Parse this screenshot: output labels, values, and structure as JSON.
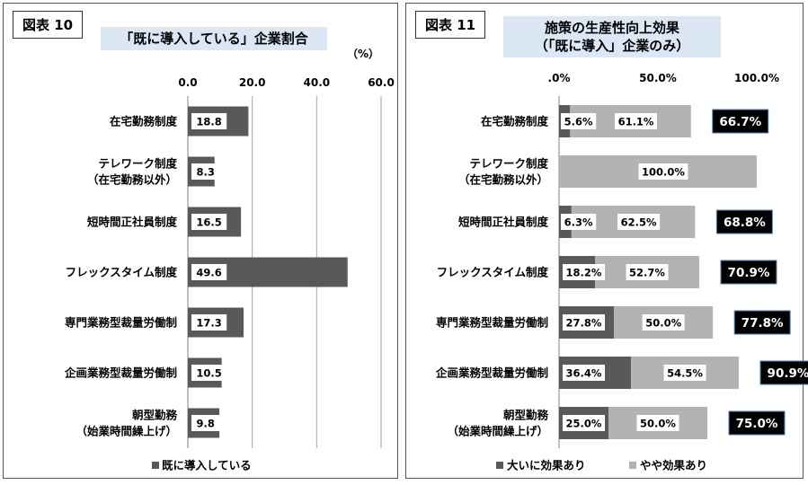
{
  "left": {
    "fig_label": "図表 10",
    "title": "「既に導入している」企業割合",
    "chart_data": {
      "type": "bar",
      "orientation": "horizontal",
      "unit_label": "（%）",
      "xlim": [
        0,
        60
      ],
      "ticks": [
        "0.0",
        "20.0",
        "40.0",
        "60.0"
      ],
      "tick_values": [
        0,
        20,
        40,
        60
      ],
      "grid": true,
      "categories": [
        [
          "在宅勤務制度"
        ],
        [
          "テレワーク制度",
          "（在宅勤務以外）"
        ],
        [
          "短時間正社員制度"
        ],
        [
          "フレックスタイム制度"
        ],
        [
          "専門業務型裁量労働制"
        ],
        [
          "企画業務型裁量労働制"
        ],
        [
          "朝型勤務",
          "（始業時間繰上げ）"
        ]
      ],
      "series": [
        {
          "name": "既に導入している",
          "values": [
            18.8,
            8.3,
            16.5,
            49.6,
            17.3,
            10.5,
            9.8
          ],
          "labels": [
            "18.8",
            "8.3",
            "16.5",
            "49.6",
            "17.3",
            "10.5",
            "9.8"
          ],
          "color": "#595959"
        }
      ],
      "legend_position": "bottom"
    }
  },
  "right": {
    "fig_label": "図表 11",
    "title_lines": [
      "施策の生産性向上効果",
      "（「既に導入」企業のみ）"
    ],
    "chart_data": {
      "type": "bar",
      "orientation": "horizontal",
      "stacked": true,
      "xlim": [
        0,
        100
      ],
      "ticks": [
        ".0%",
        "50.0%",
        "100.0%"
      ],
      "tick_values": [
        0,
        50,
        100
      ],
      "grid": false,
      "categories": [
        [
          "在宅勤務制度"
        ],
        [
          "テレワーク制度",
          "（在宅勤務以外）"
        ],
        [
          "短時間正社員制度"
        ],
        [
          "フレックスタイム制度"
        ],
        [
          "専門業務型裁量労働制"
        ],
        [
          "企画業務型裁量労働制"
        ],
        [
          "朝型勤務",
          "（始業時間繰上げ）"
        ]
      ],
      "series": [
        {
          "name": "大いに効果あり",
          "values": [
            5.6,
            0,
            6.3,
            18.2,
            27.8,
            36.4,
            25.0
          ],
          "labels": [
            "5.6%",
            "",
            "6.3%",
            "18.2%",
            "27.8%",
            "36.4%",
            "25.0%"
          ],
          "color": "#595959"
        },
        {
          "name": "やや効果あり",
          "values": [
            61.1,
            100.0,
            62.5,
            52.7,
            50.0,
            54.5,
            50.0
          ],
          "labels": [
            "61.1%",
            "100.0%",
            "62.5%",
            "52.7%",
            "50.0%",
            "54.5%",
            "50.0%"
          ],
          "color": "#b3b3b3"
        }
      ],
      "totals": [
        "66.7%",
        "",
        "68.8%",
        "70.9%",
        "77.8%",
        "90.9%",
        "75.0%"
      ],
      "legend_position": "bottom"
    }
  }
}
